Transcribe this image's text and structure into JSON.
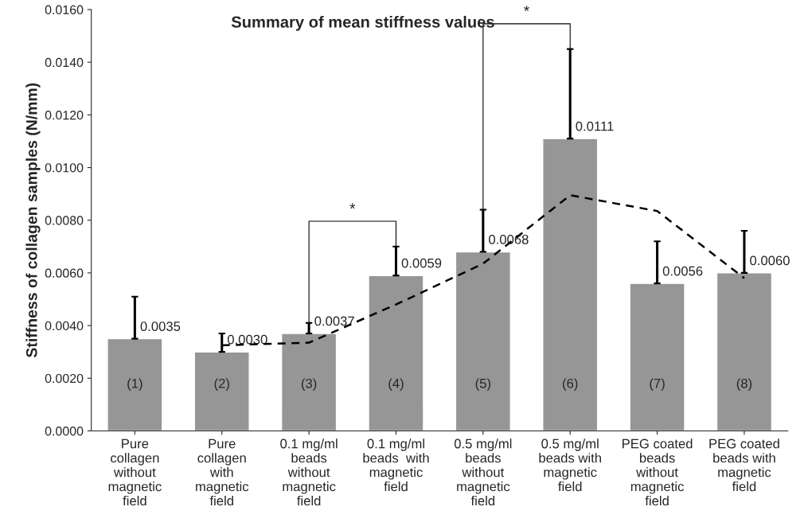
{
  "chart_data": {
    "type": "bar",
    "title": "Summary of mean stiffness values",
    "ylabel": "Stiffness of collagen samples (N/mm)",
    "categories": [
      "Pure\ncollagen\nwithout\nmagnetic\nfield",
      "Pure\ncollagen\nwith\nmagnetic\nfield",
      "0.1 mg/ml\nbeads\nwithout\nmagnetic\nfield",
      "0.1 mg/ml\nbeads  with\nmagnetic\nfield",
      "0.5 mg/ml\nbeads\nwithout\nmagnetic\nfield",
      "0.5 mg/ml\nbeads with\nmagnetic\nfield",
      "PEG coated\nbeads\nwithout\nmagnetic\nfield",
      "PEG coated\nbeads with\nmagnetic\nfield"
    ],
    "series": [
      {
        "color": "#969696",
        "values": [
          0.0035,
          0.003,
          0.0037,
          0.0059,
          0.0068,
          0.0111,
          0.0056,
          0.006
        ],
        "errors": [
          [
            0.0035,
            0.0051
          ],
          [
            0.003,
            0.0037
          ],
          [
            0.0037,
            0.0041
          ],
          [
            0.0059,
            0.007
          ],
          [
            0.0068,
            0.0084
          ],
          [
            0.0111,
            0.0145
          ],
          [
            0.0056,
            0.0072
          ],
          [
            0.006,
            0.0076
          ]
        ],
        "value_labels": [
          "0.0035",
          "0.0030",
          "0.0037",
          "0.0059",
          "0.0068",
          "0.0111",
          "0.0056",
          "0.0060"
        ]
      },
      {
        "type": "line",
        "color": "#000000",
        "line_style": "dashed",
        "marker": "none",
        "values": [
          null,
          0.00325,
          0.00335,
          0.0048,
          0.00635,
          0.00895,
          0.00835,
          0.0058
        ]
      }
    ],
    "annotations": [
      "(1)",
      "(2)",
      "(3)",
      "(4)",
      "(5)",
      "(6)",
      "(7)",
      "(8)",
      "*",
      "*"
    ],
    "ylim": [
      0,
      0.016
    ],
    "yticks": [
      {
        "value": 0,
        "label": "0.0000"
      },
      {
        "value": 0.002,
        "label": "0.0020"
      },
      {
        "value": 0.004,
        "label": "0.0040"
      },
      {
        "value": 0.006,
        "label": "0.0060"
      },
      {
        "value": 0.008,
        "label": "0.0080"
      },
      {
        "value": 0.01,
        "label": "0.0100"
      },
      {
        "value": 0.012,
        "label": "0.0120"
      },
      {
        "value": 0.014,
        "label": "0.0140"
      },
      {
        "value": 0.016,
        "label": "0.0160"
      }
    ],
    "grid": false,
    "legend": false
  }
}
